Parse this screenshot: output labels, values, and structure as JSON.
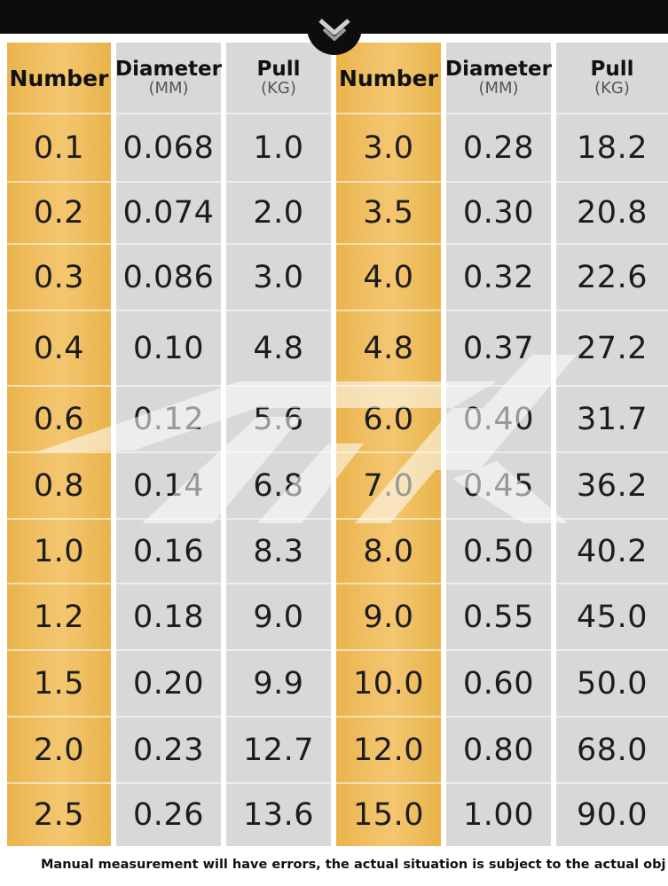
{
  "table": {
    "headers": [
      {
        "main": "Number",
        "unit": ""
      },
      {
        "main": "Diameter",
        "unit": "(MM)"
      },
      {
        "main": "Pull",
        "unit": "(KG)"
      },
      {
        "main": "Number",
        "unit": ""
      },
      {
        "main": "Diameter",
        "unit": "(MM)"
      },
      {
        "main": "Pull",
        "unit": "(KG)"
      }
    ],
    "rows": [
      [
        "0.1",
        "0.068",
        "1.0",
        "3.0",
        "0.28",
        "18.2"
      ],
      [
        "0.2",
        "0.074",
        "2.0",
        "3.5",
        "0.30",
        "20.8"
      ],
      [
        "0.3",
        "0.086",
        "3.0",
        "4.0",
        "0.32",
        "22.6"
      ],
      [
        "0.4",
        "0.10",
        "4.8",
        "4.8",
        "0.37",
        "27.2"
      ],
      [
        "0.6",
        "0.12",
        "5.6",
        "6.0",
        "0.40",
        "31.7"
      ],
      [
        "0.8",
        "0.14",
        "6.8",
        "7.0",
        "0.45",
        "36.2"
      ],
      [
        "1.0",
        "0.16",
        "8.3",
        "8.0",
        "0.50",
        "40.2"
      ],
      [
        "1.2",
        "0.18",
        "9.0",
        "9.0",
        "0.55",
        "45.0"
      ],
      [
        "1.5",
        "0.20",
        "9.9",
        "10.0",
        "0.60",
        "50.0"
      ],
      [
        "2.0",
        "0.23",
        "12.7",
        "12.0",
        "0.80",
        "68.0"
      ],
      [
        "2.5",
        "0.26",
        "13.6",
        "15.0",
        "1.00",
        "90.0"
      ]
    ]
  },
  "footer": {
    "note": "Manual measurement will have errors, the actual situation is subject to the actual obj"
  },
  "icons": {
    "top_badge": "chevron-down-icon",
    "watermark": "brand-logo-watermark"
  },
  "colors": {
    "accent_gold": "#f1c167",
    "cell_gray": "#d8d8d8",
    "top_bar": "#0d0d0d"
  }
}
